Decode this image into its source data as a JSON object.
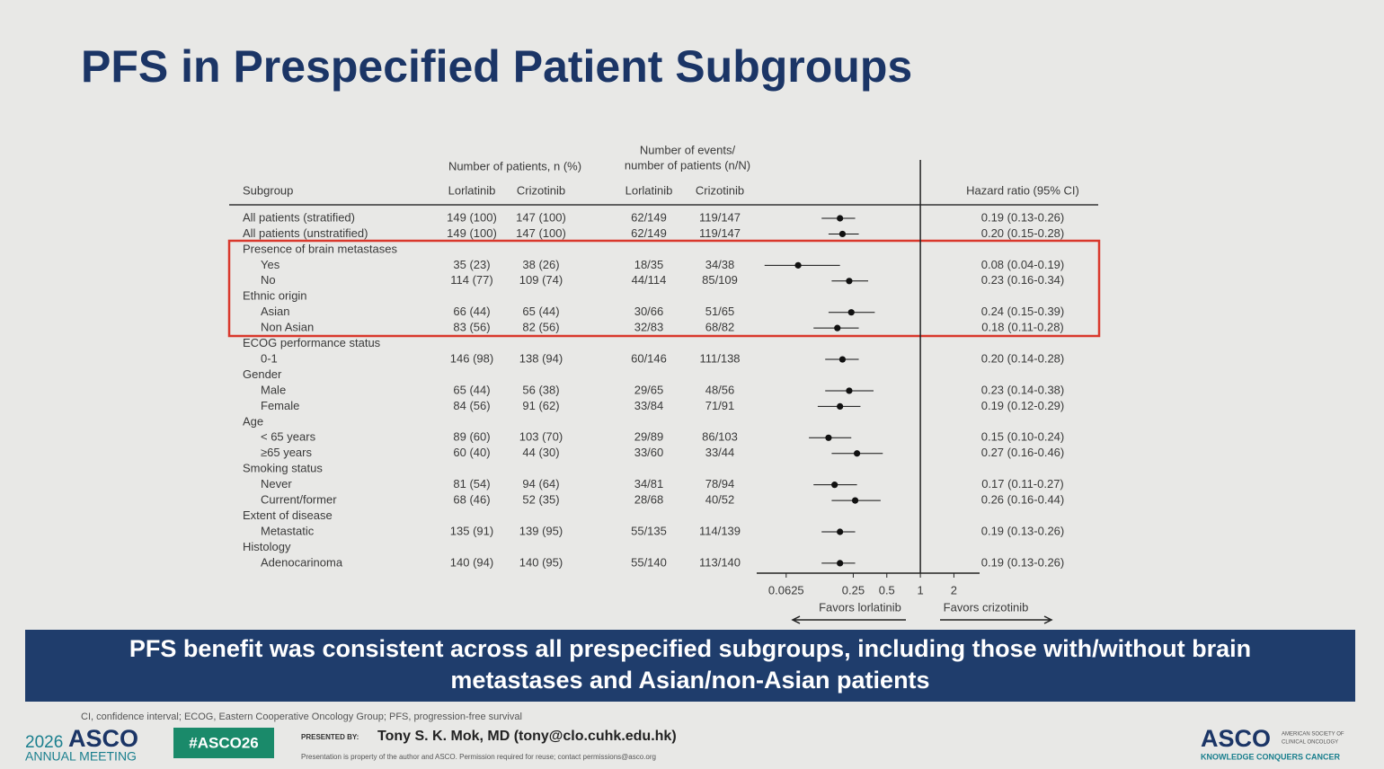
{
  "slide": {
    "title": "PFS in Prespecified Patient Subgroups",
    "banner": [
      "PFS benefit was consistent across all prespecified subgroups, including those with/without brain",
      "metastases and Asian/non-Asian patients"
    ],
    "footnote": "CI, confidence interval; ECOG, Eastern Cooperative Oncology Group; PFS, progression-free survival",
    "meeting_year": "2026",
    "meeting_name": "ASCO",
    "meeting_sub": "ANNUAL MEETING",
    "hashtag": "#ASCO26",
    "presented_by": "PRESENTED BY:",
    "presenter": "Tony S. K. Mok, MD (tony@clo.cuhk.edu.hk)",
    "disclaimer": "Presentation is property of the author and ASCO. Permission required for reuse; contact permissions@asco.org",
    "org_logo": "ASCO",
    "org_name": [
      "AMERICAN SOCIETY OF",
      "CLINICAL ONCOLOGY"
    ],
    "org_tagline": "KNOWLEDGE CONQUERS CANCER"
  },
  "chart_data": {
    "type": "forest",
    "patients_header": "Number of patients, n (%)",
    "events_header": [
      "Number of events/",
      "number of patients (n/N)"
    ],
    "columns": [
      "Subgroup",
      "Lorlatinib",
      "Crizotinib",
      "Lorlatinib",
      "Crizotinib",
      "Hazard ratio (95% CI)"
    ],
    "categories": [
      "All patients (stratified)",
      "All patients (unstratified)",
      "Presence of brain metastases",
      "Yes",
      "No",
      "Ethnic origin",
      "Asian",
      "Non Asian",
      "ECOG performance status",
      "0-1",
      "Gender",
      "Male",
      "Female",
      "Age",
      "< 65 years",
      "≥65 years",
      "Smoking status",
      "Never",
      "Current/former",
      "Extent of disease",
      "Metastatic",
      "Histology",
      "Adenocarinoma"
    ],
    "table": [
      [
        "149 (100)",
        "147 (100)",
        "62/149",
        "119/147"
      ],
      [
        "149 (100)",
        "147 (100)",
        "62/149",
        "119/147"
      ],
      null,
      [
        "35 (23)",
        "38 (26)",
        "18/35",
        "34/38"
      ],
      [
        "114 (77)",
        "109 (74)",
        "44/114",
        "85/109"
      ],
      null,
      [
        "66 (44)",
        "65 (44)",
        "30/66",
        "51/65"
      ],
      [
        "83 (56)",
        "82 (56)",
        "32/83",
        "68/82"
      ],
      null,
      [
        "146 (98)",
        "138 (94)",
        "60/146",
        "111/138"
      ],
      null,
      [
        "65 (44)",
        "56 (38)",
        "29/65",
        "48/56"
      ],
      [
        "84 (56)",
        "91 (62)",
        "33/84",
        "71/91"
      ],
      null,
      [
        "89 (60)",
        "103 (70)",
        "29/89",
        "86/103"
      ],
      [
        "60 (40)",
        "44 (30)",
        "33/60",
        "33/44"
      ],
      null,
      [
        "81 (54)",
        "94 (64)",
        "34/81",
        "78/94"
      ],
      [
        "68 (46)",
        "52 (35)",
        "28/68",
        "40/52"
      ],
      null,
      [
        "135 (91)",
        "139 (95)",
        "55/135",
        "114/139"
      ],
      null,
      [
        "140 (94)",
        "140 (95)",
        "55/140",
        "113/140"
      ]
    ],
    "values": [
      0.19,
      0.2,
      null,
      0.08,
      0.23,
      null,
      0.24,
      0.18,
      null,
      0.2,
      null,
      0.23,
      0.19,
      null,
      0.15,
      0.27,
      null,
      0.17,
      0.26,
      null,
      0.19,
      null,
      0.19
    ],
    "ci_low": [
      0.13,
      0.15,
      null,
      0.04,
      0.16,
      null,
      0.15,
      0.11,
      null,
      0.14,
      null,
      0.14,
      0.12,
      null,
      0.1,
      0.16,
      null,
      0.11,
      0.16,
      null,
      0.13,
      null,
      0.13
    ],
    "ci_high": [
      0.26,
      0.28,
      null,
      0.19,
      0.34,
      null,
      0.39,
      0.28,
      null,
      0.28,
      null,
      0.38,
      0.29,
      null,
      0.24,
      0.46,
      null,
      0.27,
      0.44,
      null,
      0.26,
      null,
      0.26
    ],
    "value_labels": [
      "0.19 (0.13-0.26)",
      "0.20 (0.15-0.28)",
      null,
      "0.08 (0.04-0.19)",
      "0.23 (0.16-0.34)",
      null,
      "0.24 (0.15-0.39)",
      "0.18 (0.11-0.28)",
      null,
      "0.20 (0.14-0.28)",
      null,
      "0.23 (0.14-0.38)",
      "0.19 (0.12-0.29)",
      null,
      "0.15 (0.10-0.24)",
      "0.27 (0.16-0.46)",
      null,
      "0.17 (0.11-0.27)",
      "0.26 (0.16-0.44)",
      null,
      "0.19 (0.13-0.26)",
      null,
      "0.19 (0.13-0.26)"
    ],
    "xlog": true,
    "xlim": [
      0.034,
      3.4
    ],
    "xticks": [
      0.0625,
      0.25,
      0.5,
      1,
      2
    ],
    "reference_line": 1,
    "favors_left": "Favors lorlatinib",
    "favors_right": "Favors crizotinib",
    "color": "#111111"
  }
}
